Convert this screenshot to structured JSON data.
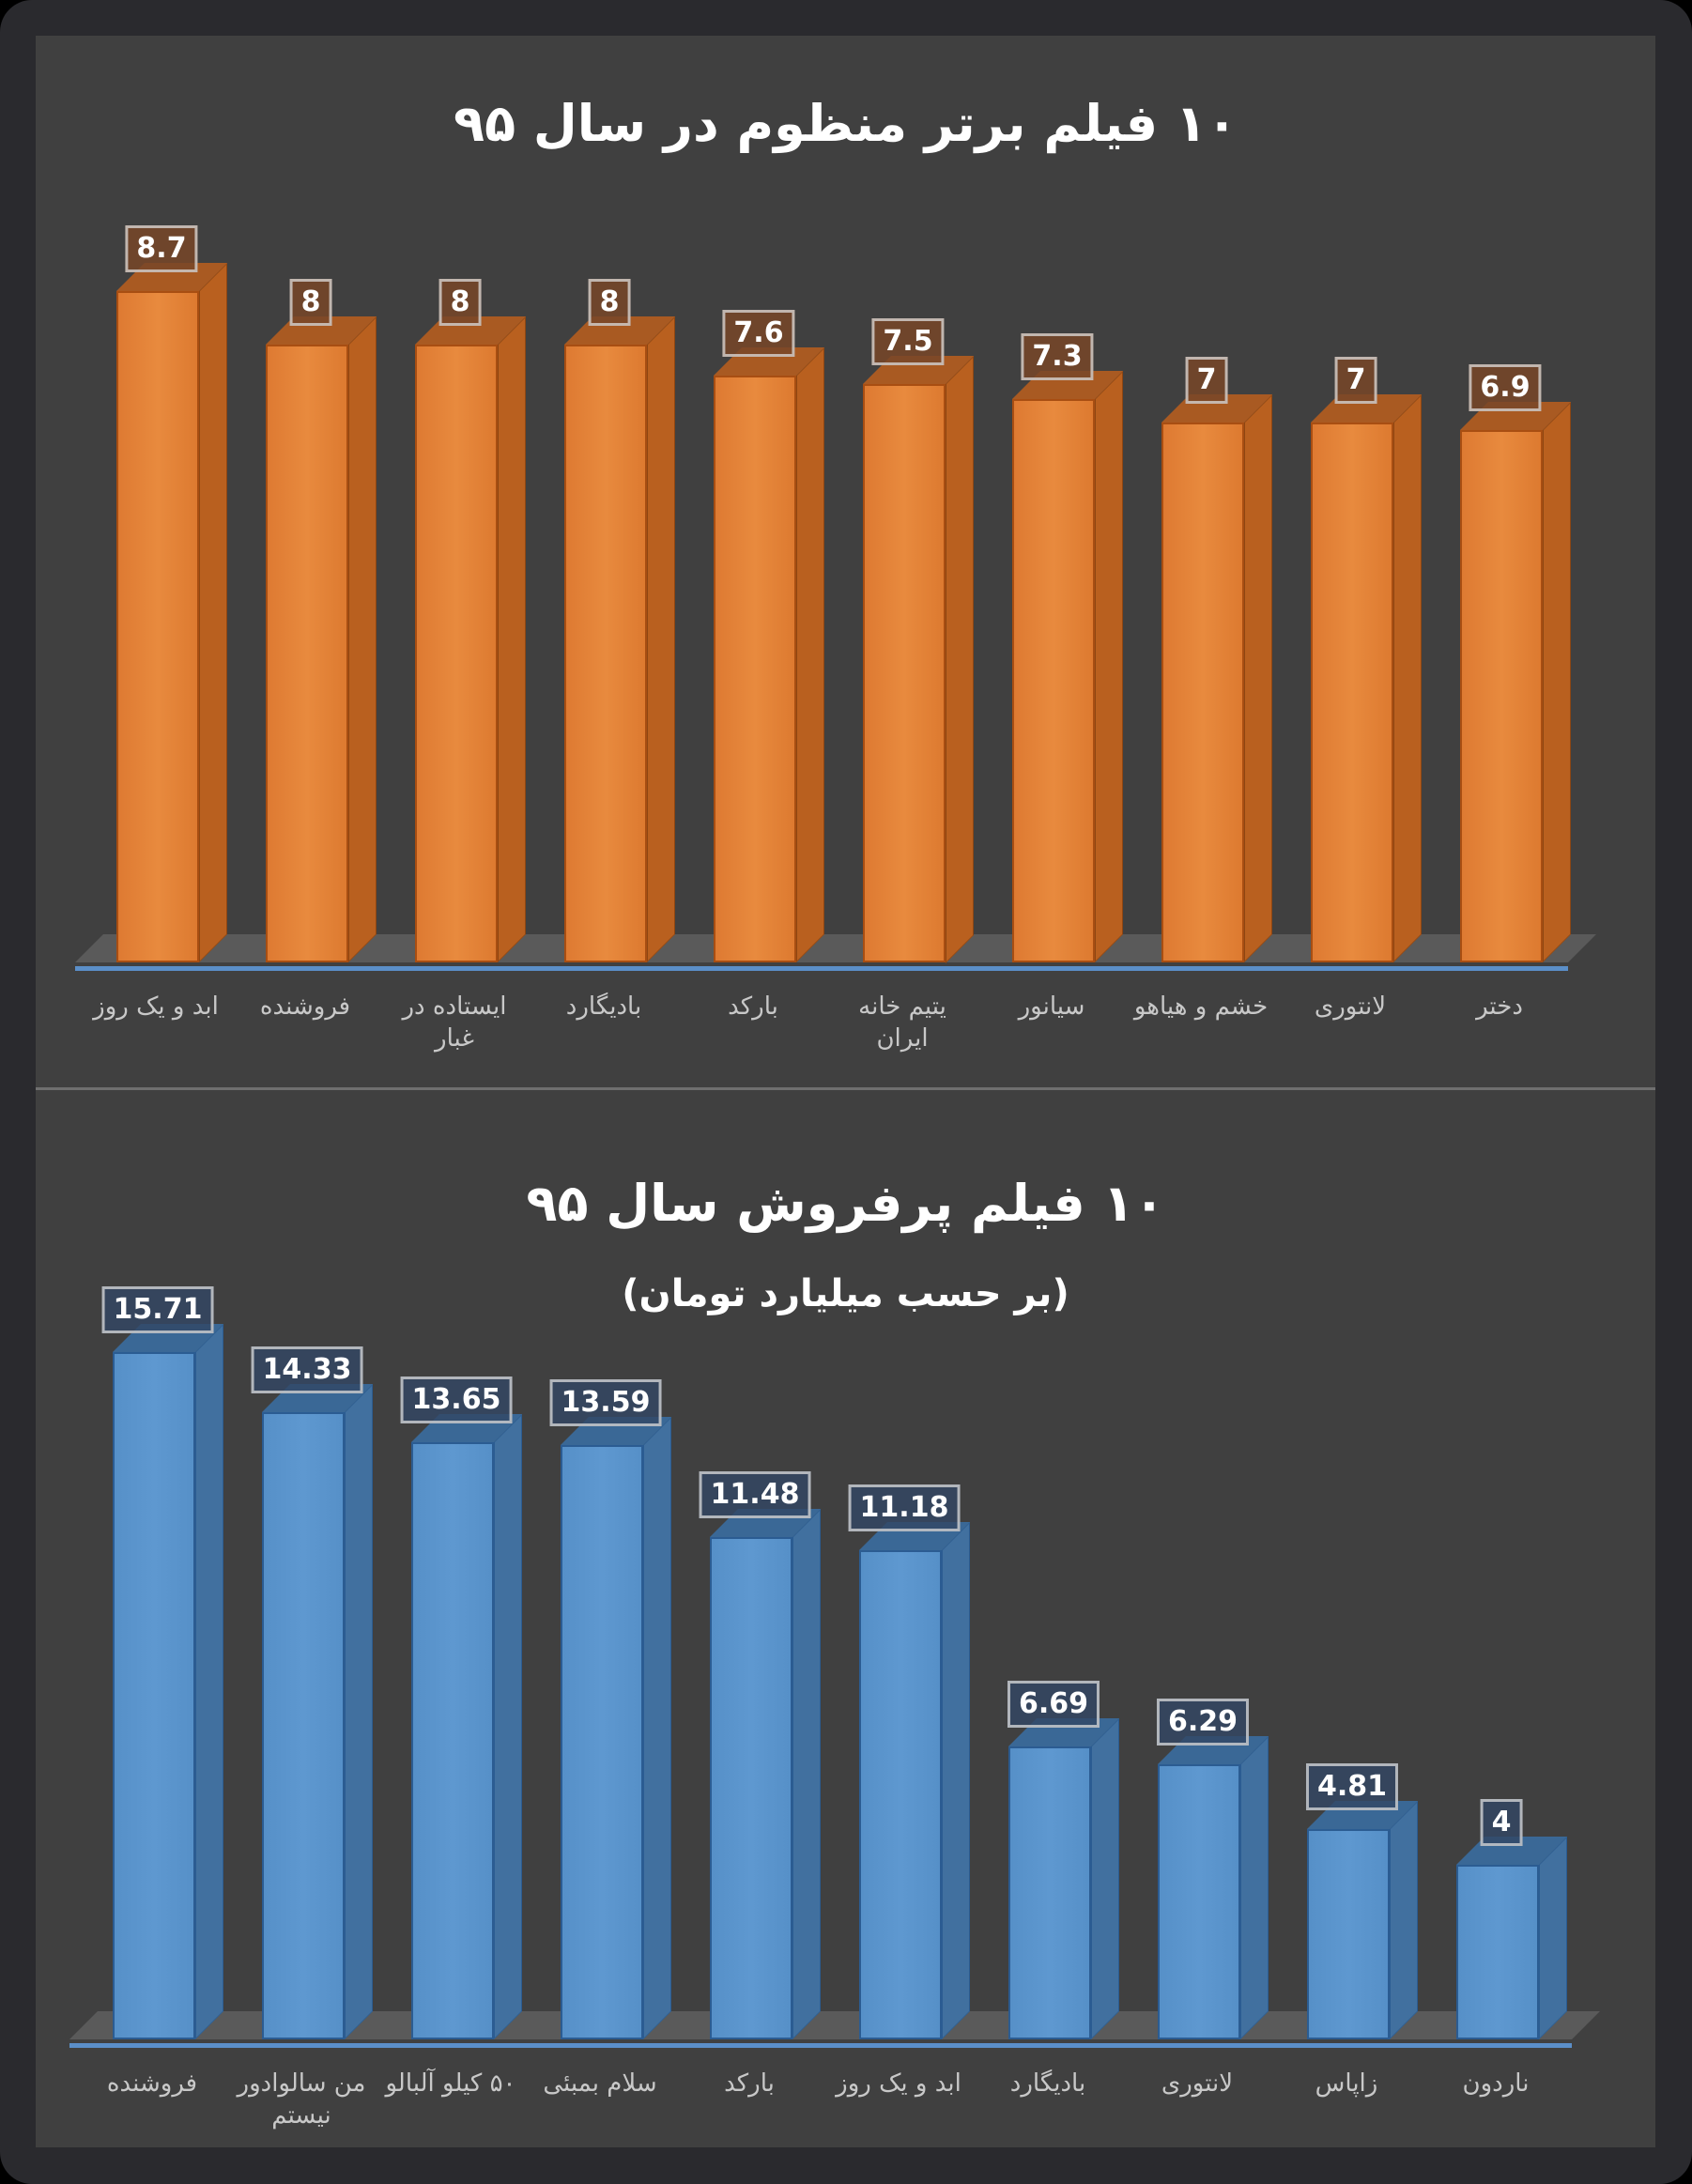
{
  "chart_data": [
    {
      "type": "bar",
      "title": "۱۰ فیلم برتر منظوم در سال ۹۵",
      "xlabel": "",
      "ylabel": "",
      "categories": [
        "ابد و یک روز",
        "فروشنده",
        "ایستاده در غبار",
        "بادیگارد",
        "بارکد",
        "یتیم خانه ایران",
        "سیانور",
        "خشم و هیاهو",
        "لانتوری",
        "دختر"
      ],
      "values": [
        8.7,
        8,
        8,
        8,
        7.6,
        7.5,
        7.3,
        7,
        7,
        6.9
      ],
      "data_labels": [
        "8.7",
        "8",
        "8",
        "8",
        "7.6",
        "7.5",
        "7.3",
        "7",
        "7",
        "6.9"
      ],
      "style": "3d-column",
      "color": "#e07b35",
      "grid": false,
      "legend": null
    },
    {
      "type": "bar",
      "title": "۱۰ فیلم پرفروش سال ۹۵",
      "subtitle": "(بر حسب میلیارد تومان)",
      "xlabel": "",
      "ylabel": "میلیارد تومان",
      "categories": [
        "فروشنده",
        "من سالوادور نیستم",
        "۵۰ کیلو آلبالو",
        "سلام بمبئی",
        "بارکد",
        "ابد و یک روز",
        "بادیگارد",
        "لانتوری",
        "زاپاس",
        "ناردون"
      ],
      "values": [
        15.71,
        14.33,
        13.65,
        13.59,
        11.48,
        11.18,
        6.69,
        6.29,
        4.81,
        4
      ],
      "data_labels": [
        "15.71",
        "14.33",
        "13.65",
        "13.59",
        "11.48",
        "11.18",
        "6.69",
        "6.29",
        "4.81",
        "4"
      ],
      "style": "3d-column",
      "color": "#5a93cc",
      "grid": false,
      "legend": null
    }
  ],
  "charts": [
    {
      "title": "۱۰ فیلم برتر منظوم در سال ۹۵",
      "bars": [
        {
          "label": "ابد و یک روز",
          "value": "8.7"
        },
        {
          "label": "فروشنده",
          "value": "8"
        },
        {
          "label": "ایستاده در غبار",
          "value": "8"
        },
        {
          "label": "بادیگارد",
          "value": "8"
        },
        {
          "label": "بارکد",
          "value": "7.6"
        },
        {
          "label": "یتیم خانه ایران",
          "value": "7.5"
        },
        {
          "label": "سیانور",
          "value": "7.3"
        },
        {
          "label": "خشم و هیاهو",
          "value": "7"
        },
        {
          "label": "لانتوری",
          "value": "7"
        },
        {
          "label": "دختر",
          "value": "6.9"
        }
      ]
    },
    {
      "title": "۱۰ فیلم پرفروش سال ۹۵",
      "subtitle": "(بر حسب میلیارد تومان)",
      "bars": [
        {
          "label": "فروشنده",
          "value": "15.71"
        },
        {
          "label": "من سالوادور نیستم",
          "value": "14.33"
        },
        {
          "label": "۵۰ کیلو آلبالو",
          "value": "13.65"
        },
        {
          "label": "سلام بمبئی",
          "value": "13.59"
        },
        {
          "label": "بارکد",
          "value": "11.48"
        },
        {
          "label": "ابد و یک روز",
          "value": "11.18"
        },
        {
          "label": "بادیگارد",
          "value": "6.69"
        },
        {
          "label": "لانتوری",
          "value": "6.29"
        },
        {
          "label": "زاپاس",
          "value": "4.81"
        },
        {
          "label": "ناردون",
          "value": "4"
        }
      ]
    }
  ]
}
